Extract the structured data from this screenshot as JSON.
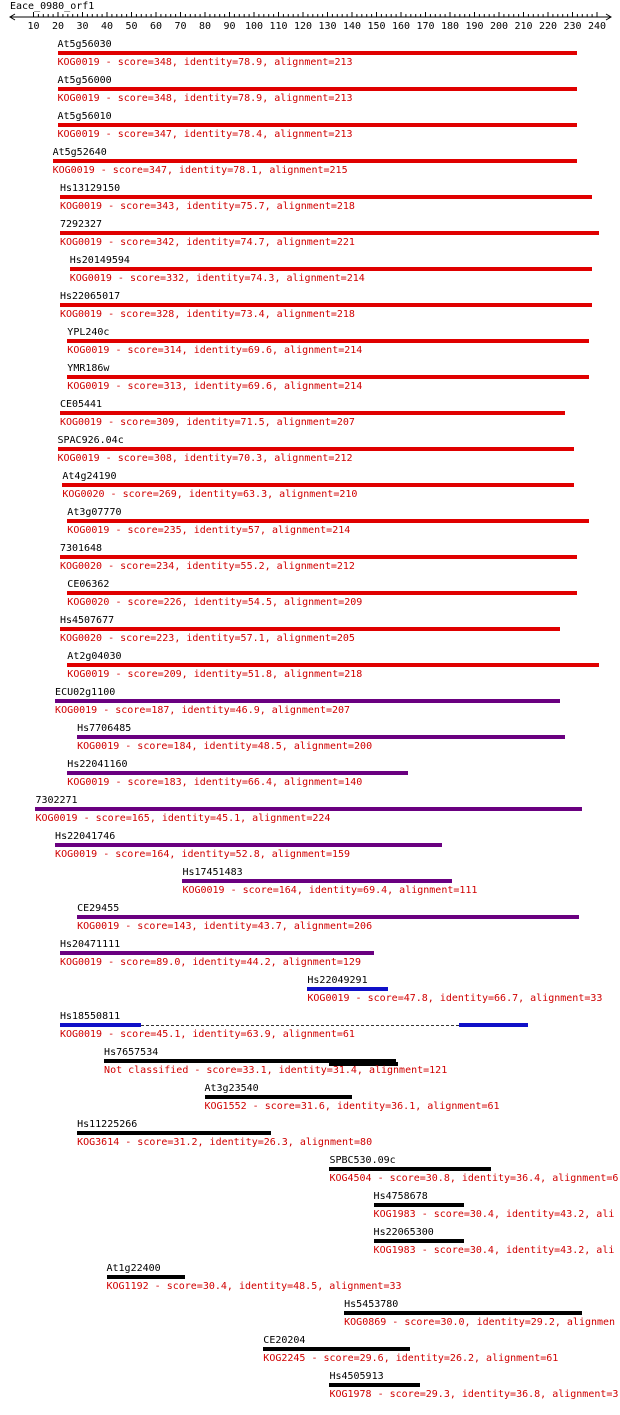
{
  "query_name": "Eace_0980_orf1",
  "axis": {
    "min": 10,
    "max": 240,
    "step": 10,
    "tick_labels": [
      "10",
      "20",
      "30",
      "40",
      "50",
      "60",
      "70",
      "80",
      "90",
      "100",
      "110",
      "120",
      "130",
      "140",
      "150",
      "160",
      "170",
      "180",
      "190",
      "200",
      "210",
      "220",
      "230",
      "240"
    ]
  },
  "colors": {
    "red": "#e00000",
    "purple": "#6a0080",
    "blue": "#1010c8",
    "black": "#000000",
    "label_red": "#d00000"
  },
  "hits": [
    {
      "name": "At5g56030",
      "desc": "KOG0019 - score=348, identity=78.9, alignment=213",
      "color": "red",
      "segments": [
        [
          20,
          232
        ]
      ]
    },
    {
      "name": "At5g56000",
      "desc": "KOG0019 - score=348, identity=78.9, alignment=213",
      "color": "red",
      "segments": [
        [
          20,
          232
        ]
      ]
    },
    {
      "name": "At5g56010",
      "desc": "KOG0019 - score=347, identity=78.4, alignment=213",
      "color": "red",
      "segments": [
        [
          20,
          232
        ]
      ]
    },
    {
      "name": "At5g52640",
      "desc": "KOG0019 - score=347, identity=78.1, alignment=215",
      "color": "red",
      "segments": [
        [
          18,
          232
        ]
      ]
    },
    {
      "name": "Hs13129150",
      "desc": "KOG0019 - score=343, identity=75.7, alignment=218",
      "color": "red",
      "segments": [
        [
          21,
          238
        ]
      ]
    },
    {
      "name": "7292327",
      "desc": "KOG0019 - score=342, identity=74.7, alignment=221",
      "color": "red",
      "segments": [
        [
          21,
          241
        ]
      ]
    },
    {
      "name": "Hs20149594",
      "desc": "KOG0019 - score=332, identity=74.3, alignment=214",
      "color": "red",
      "segments": [
        [
          25,
          238
        ]
      ]
    },
    {
      "name": "Hs22065017",
      "desc": "KOG0019 - score=328, identity=73.4, alignment=218",
      "color": "red",
      "segments": [
        [
          21,
          238
        ]
      ]
    },
    {
      "name": "YPL240c",
      "desc": "KOG0019 - score=314, identity=69.6, alignment=214",
      "color": "red",
      "segments": [
        [
          24,
          237
        ]
      ]
    },
    {
      "name": "YMR186w",
      "desc": "KOG0019 - score=313, identity=69.6, alignment=214",
      "color": "red",
      "segments": [
        [
          24,
          237
        ]
      ]
    },
    {
      "name": "CE05441",
      "desc": "KOG0019 - score=309, identity=71.5, alignment=207",
      "color": "red",
      "segments": [
        [
          21,
          227
        ]
      ]
    },
    {
      "name": "SPAC926.04c",
      "desc": "KOG0019 - score=308, identity=70.3, alignment=212",
      "color": "red",
      "segments": [
        [
          20,
          231
        ]
      ]
    },
    {
      "name": "At4g24190",
      "desc": "KOG0020 - score=269, identity=63.3, alignment=210",
      "color": "red",
      "segments": [
        [
          22,
          231
        ]
      ]
    },
    {
      "name": "At3g07770",
      "desc": "KOG0019 - score=235, identity=57, alignment=214",
      "color": "red",
      "segments": [
        [
          24,
          237
        ]
      ]
    },
    {
      "name": "7301648",
      "desc": "KOG0020 - score=234, identity=55.2, alignment=212",
      "color": "red",
      "segments": [
        [
          21,
          232
        ]
      ]
    },
    {
      "name": "CE06362",
      "desc": "KOG0020 - score=226, identity=54.5, alignment=209",
      "color": "red",
      "segments": [
        [
          24,
          232
        ]
      ]
    },
    {
      "name": "Hs4507677",
      "desc": "KOG0020 - score=223, identity=57.1, alignment=205",
      "color": "red",
      "segments": [
        [
          21,
          225
        ]
      ]
    },
    {
      "name": "At2g04030",
      "desc": "KOG0019 - score=209, identity=51.8, alignment=218",
      "color": "red",
      "segments": [
        [
          24,
          241
        ]
      ]
    },
    {
      "name": "ECU02g1100",
      "desc": "KOG0019 - score=187, identity=46.9, alignment=207",
      "color": "purple",
      "segments": [
        [
          19,
          225
        ]
      ]
    },
    {
      "name": "Hs7706485",
      "desc": "KOG0019 - score=184, identity=48.5, alignment=200",
      "color": "purple",
      "segments": [
        [
          28,
          227
        ]
      ]
    },
    {
      "name": "Hs22041160",
      "desc": "KOG0019 - score=183, identity=66.4, alignment=140",
      "color": "purple",
      "segments": [
        [
          24,
          163
        ]
      ]
    },
    {
      "name": "7302271",
      "desc": "KOG0019 - score=165, identity=45.1, alignment=224",
      "color": "purple",
      "segments": [
        [
          11,
          234
        ]
      ]
    },
    {
      "name": "Hs22041746",
      "desc": "KOG0019 - score=164, identity=52.8, alignment=159",
      "color": "purple",
      "segments": [
        [
          19,
          177
        ]
      ]
    },
    {
      "name": "Hs17451483",
      "desc": "KOG0019 - score=164, identity=69.4, alignment=111",
      "color": "purple",
      "segments": [
        [
          71,
          181
        ]
      ]
    },
    {
      "name": "CE29455",
      "desc": "KOG0019 - score=143, identity=43.7, alignment=206",
      "color": "purple",
      "segments": [
        [
          28,
          233
        ]
      ]
    },
    {
      "name": "Hs20471111",
      "desc": "KOG0019 - score=89.0, identity=44.2, alignment=129",
      "color": "purple",
      "segments": [
        [
          21,
          149
        ]
      ]
    },
    {
      "name": "Hs22049291",
      "desc": "KOG0019 - score=47.8, identity=66.7, alignment=33",
      "color": "blue",
      "segments": [
        [
          122,
          155
        ]
      ]
    },
    {
      "name": "Hs18550811",
      "desc": "KOG0019 - score=45.1, identity=63.9, alignment=61",
      "color": "blue",
      "segments": [
        [
          21,
          54
        ],
        [
          184,
          212
        ]
      ],
      "gap": [
        54,
        184
      ]
    },
    {
      "name": "Hs7657534",
      "desc": "Not classified - score=33.1, identity=31.4, alignment=121",
      "color": "black",
      "segments": [
        [
          39,
          158
        ],
        [
          131,
          159
        ]
      ]
    },
    {
      "name": "At3g23540",
      "desc": "KOG1552 - score=31.6, identity=36.1, alignment=61",
      "color": "black",
      "segments": [
        [
          80,
          140
        ]
      ]
    },
    {
      "name": "Hs11225266",
      "desc": "KOG3614 - score=31.2, identity=26.3, alignment=80",
      "color": "black",
      "segments": [
        [
          28,
          107
        ]
      ]
    },
    {
      "name": "SPBC530.09c",
      "desc": "KOG4504 - score=30.8, identity=36.4, alignment=6",
      "color": "black",
      "segments": [
        [
          131,
          197
        ]
      ]
    },
    {
      "name": "Hs4758678",
      "desc": "KOG1983 - score=30.4, identity=43.2, ali",
      "color": "black",
      "segments": [
        [
          149,
          186
        ]
      ]
    },
    {
      "name": "Hs22065300",
      "desc": "KOG1983 - score=30.4, identity=43.2, ali",
      "color": "black",
      "segments": [
        [
          149,
          186
        ]
      ]
    },
    {
      "name": "At1g22400",
      "desc": "KOG1192 - score=30.4, identity=48.5, alignment=33",
      "color": "black",
      "segments": [
        [
          40,
          72
        ]
      ]
    },
    {
      "name": "Hs5453780",
      "desc": "KOG0869 - score=30.0, identity=29.2, alignmen",
      "color": "black",
      "segments": [
        [
          137,
          234
        ]
      ]
    },
    {
      "name": "CE20204",
      "desc": "KOG2245 - score=29.6, identity=26.2, alignment=61",
      "color": "black",
      "segments": [
        [
          104,
          164
        ]
      ]
    },
    {
      "name": "Hs4505913",
      "desc": "KOG1978 - score=29.3, identity=36.8, alignment=3",
      "color": "black",
      "segments": [
        [
          131,
          168
        ]
      ]
    }
  ]
}
